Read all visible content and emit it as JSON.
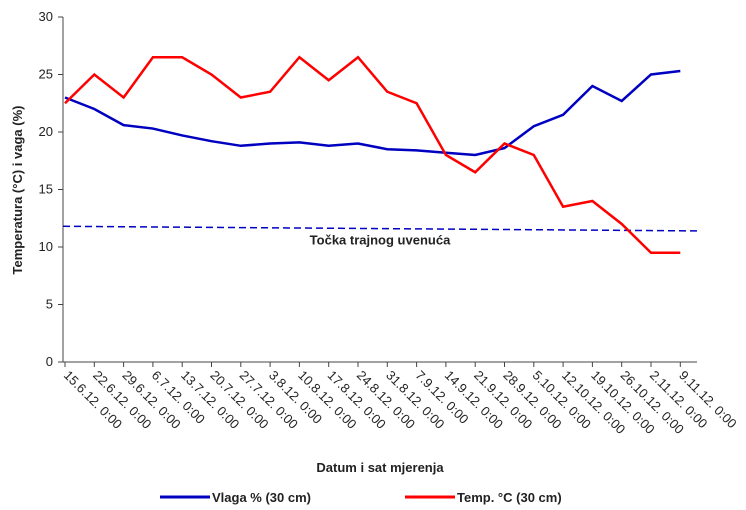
{
  "chart_data": {
    "type": "line",
    "y_label": "Temperatura (°C) i vaga (%)",
    "x_label": "Datum i sat mjerenja",
    "categories": [
      "15.6.12. 0:00",
      "22.6.12. 0:00",
      "29.6.12. 0:00",
      "6.7.12. 0:00",
      "13.7.12. 0:00",
      "20.7.12. 0:00",
      "27.7.12. 0:00",
      "3.8.12. 0:00",
      "10.8.12. 0:00",
      "17.8.12. 0:00",
      "24.8.12. 0:00",
      "31.8.12. 0:00",
      "7.9.12. 0:00",
      "14.9.12. 0:00",
      "21.9.12. 0:00",
      "28.9.12. 0:00",
      "5.10.12. 0:00",
      "12.10.12. 0:00",
      "19.10.12. 0:00",
      "26.10.12. 0:00",
      "2.11.12. 0:00",
      "9.11.12. 0:00"
    ],
    "series": [
      {
        "name": "Vlaga % (30 cm)",
        "color": "#0000c0",
        "values": [
          23,
          22,
          20.6,
          20.3,
          19.7,
          19.2,
          18.8,
          19,
          19.1,
          18.8,
          19,
          18.5,
          18.4,
          18.2,
          18,
          18.6,
          20.5,
          21.5,
          24,
          22.7,
          25,
          25.3
        ]
      },
      {
        "name": "Temp. °C (30 cm)",
        "color": "#ff0000",
        "values": [
          22.5,
          25,
          23,
          26.5,
          26.5,
          25,
          23,
          23.5,
          26.5,
          24.5,
          26.5,
          23.5,
          22.5,
          18,
          16.5,
          19,
          18,
          13.5,
          14,
          12,
          9.5,
          9.5
        ]
      }
    ],
    "reference": {
      "label": "Točka trajnog uvenuća",
      "color": "#0000c0",
      "values": [
        11.8,
        11.4
      ]
    },
    "ylim": [
      0,
      30
    ],
    "yticks": [
      0,
      5,
      10,
      15,
      20,
      25,
      30
    ],
    "grid": false,
    "legend": "bottom"
  }
}
